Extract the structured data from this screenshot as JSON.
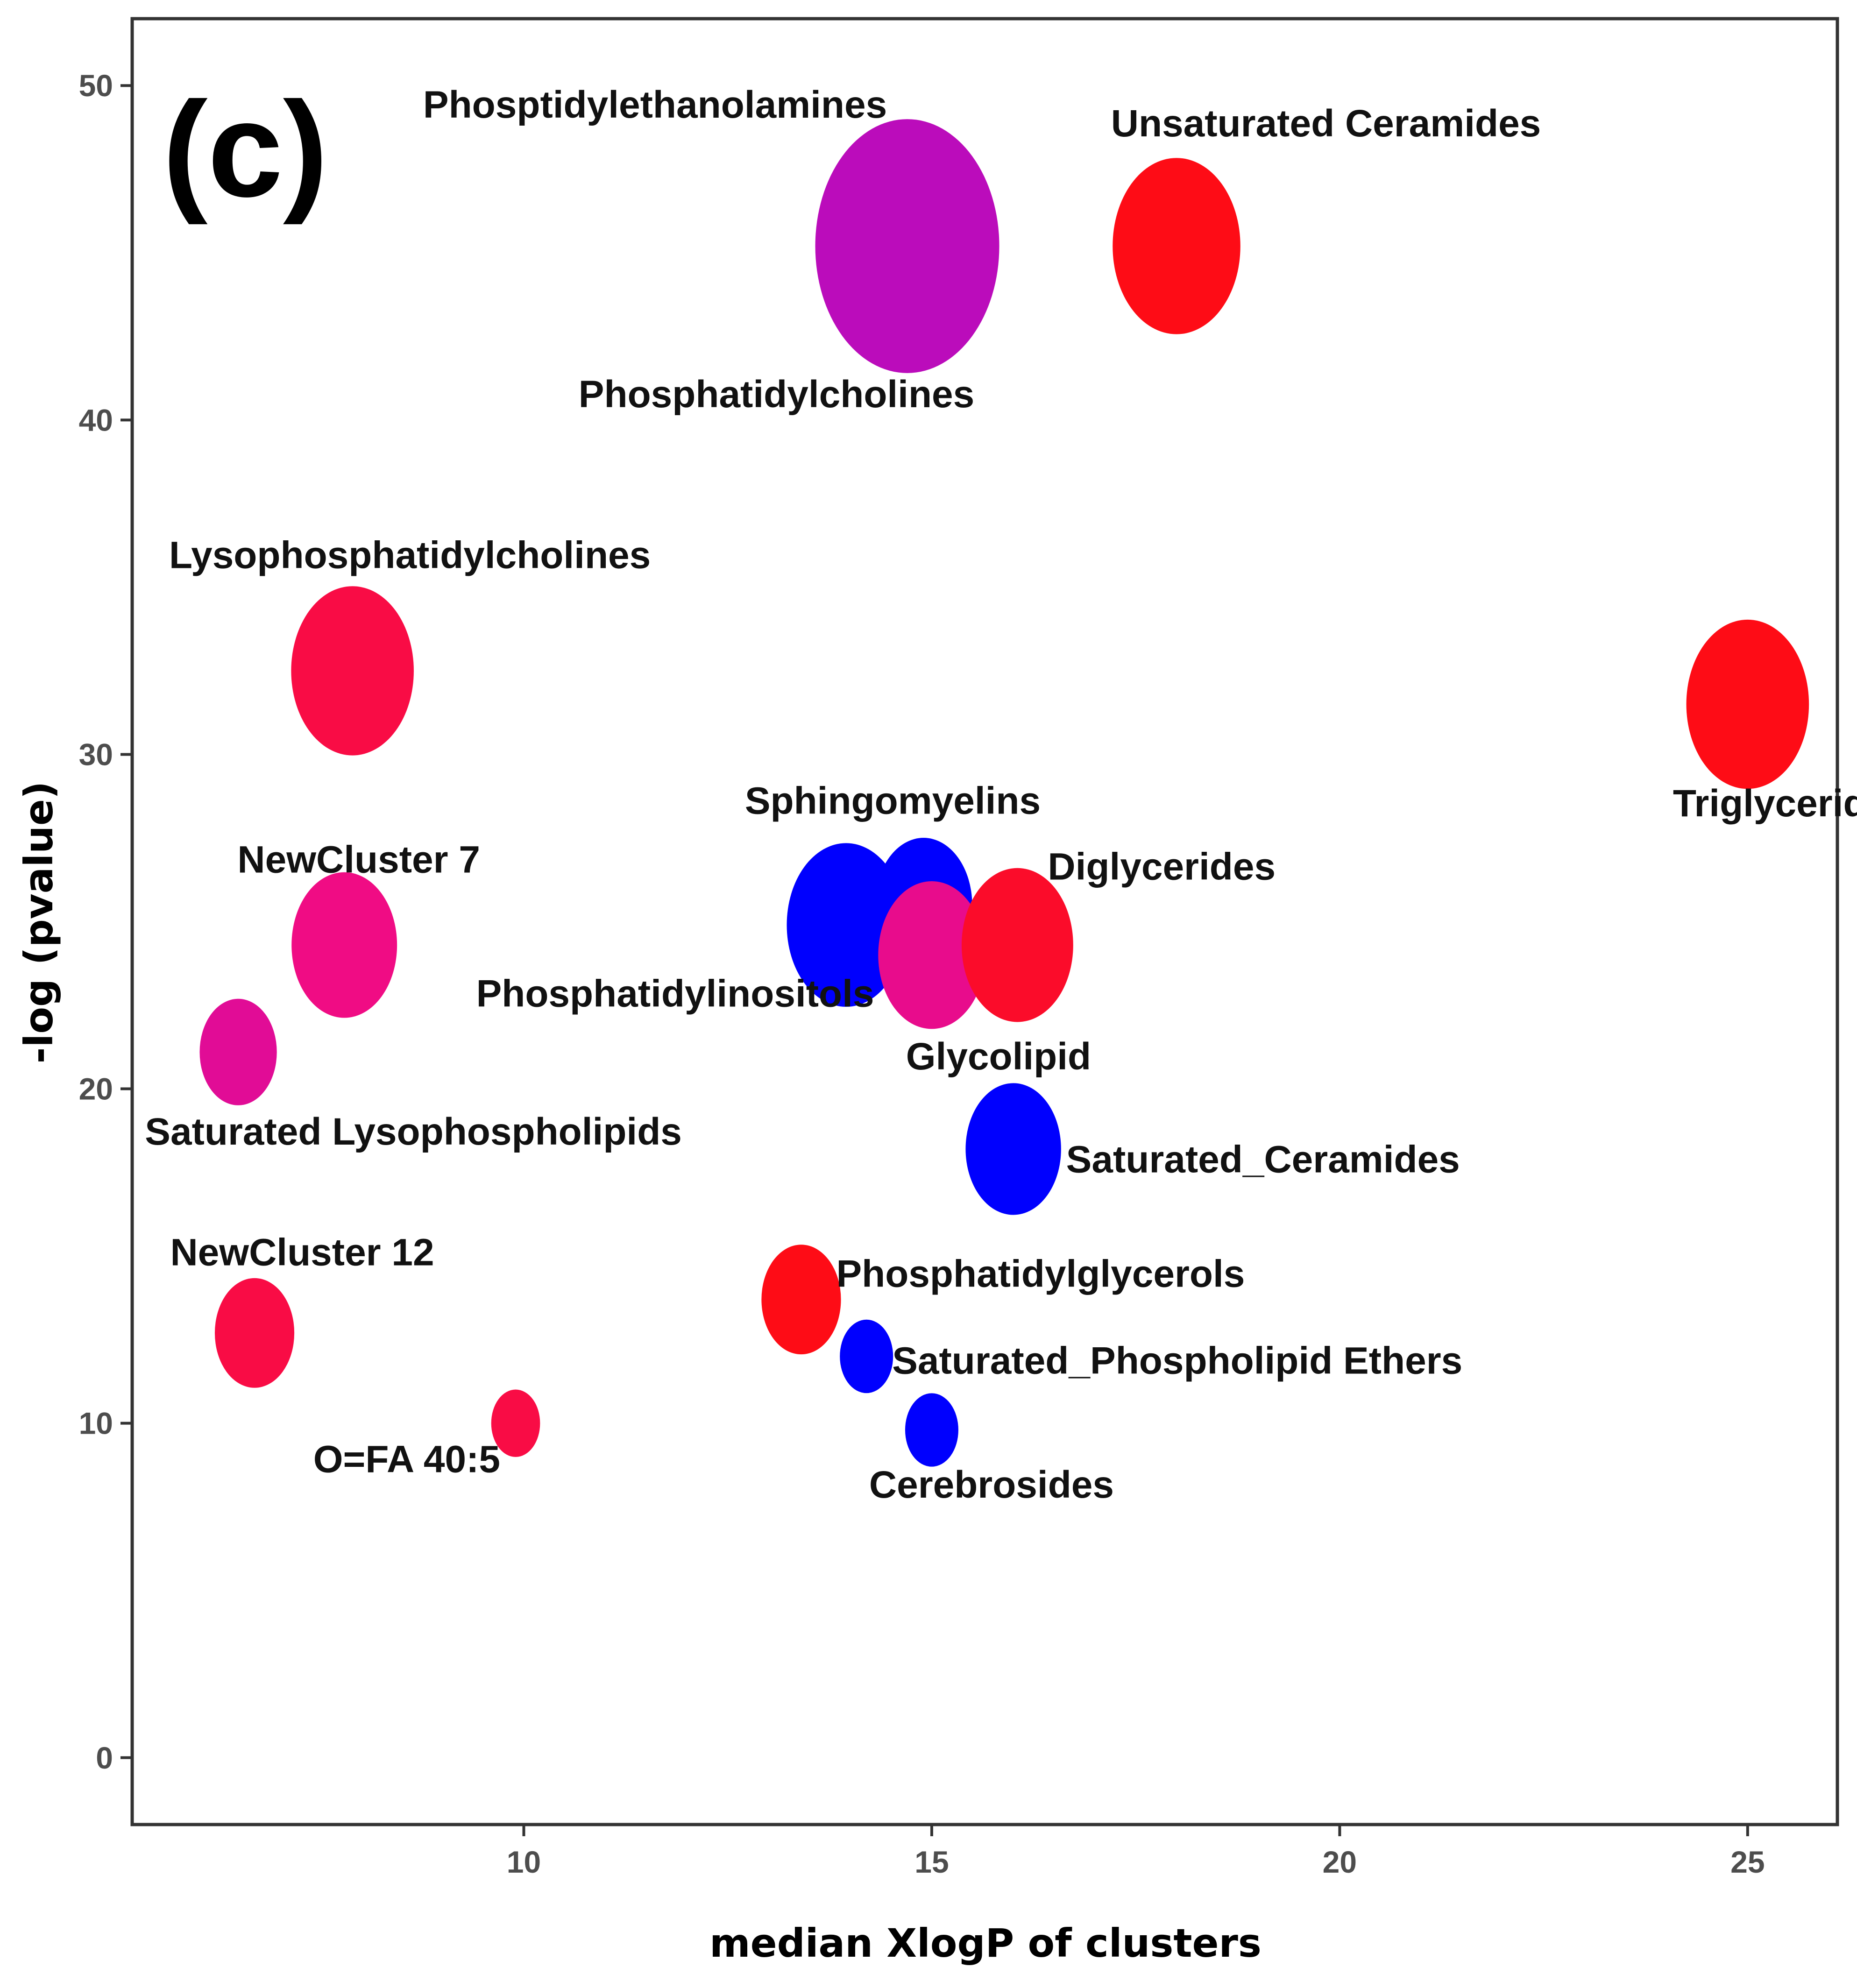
{
  "chart_data": {
    "type": "bubble-scatter",
    "panel_label": "(c)",
    "xlabel": "median XlogP of clusters",
    "ylabel": "-log (pvalue)",
    "xlim": [
      5.2,
      26.1
    ],
    "ylim": [
      -2,
      52
    ],
    "x_ticks": [
      10,
      15,
      20,
      25
    ],
    "y_ticks": [
      0,
      10,
      20,
      30,
      40,
      50
    ],
    "grid": false,
    "points": [
      {
        "name": "Phosptidylethanolamines",
        "label": "Phosptidylethanolamines",
        "x": 14.7,
        "y": 45.2,
        "size": 100,
        "color": "#bb0cbb"
      },
      {
        "name": "Phosphatidylcholines",
        "label": "Phosphatidylcholines",
        "x": 14.7,
        "y": 45.2,
        "size": 100,
        "color": "#bb0cbb"
      },
      {
        "name": "Unsaturated Ceramides",
        "label": "Unsaturated Ceramides",
        "x": 18.0,
        "y": 45.2,
        "size": 43,
        "color": "#fe0c16"
      },
      {
        "name": "Lysophosphatidylcholines",
        "label": "Lysophosphatidylcholines",
        "x": 7.9,
        "y": 32.5,
        "size": 39,
        "color": "#f90c45"
      },
      {
        "name": "Triglycerides",
        "label": "Triglycerides",
        "x": 25.0,
        "y": 31.5,
        "size": 39,
        "color": "#fe0c16"
      },
      {
        "name": "NewCluster 7",
        "label": "NewCluster 7",
        "x": 7.8,
        "y": 24.3,
        "size": 27,
        "color": "#f00c84"
      },
      {
        "name": "Sphingomyelins",
        "label": "Sphingomyelins",
        "x": 14.9,
        "y": 25.5,
        "size": 22,
        "color": "#0000fe"
      },
      {
        "name": "Phosphatidylinositols",
        "label": "Phosphatidylinositols",
        "x": 13.95,
        "y": 24.9,
        "size": 36,
        "color": "#0000fe"
      },
      {
        "name": "Glycolipid",
        "label": "Glycolipid",
        "x": 15.0,
        "y": 24.0,
        "size": 28,
        "color": "#e80c8c"
      },
      {
        "name": "Diglycerides",
        "label": "Diglycerides",
        "x": 16.05,
        "y": 24.3,
        "size": 31,
        "color": "#fb0c2a"
      },
      {
        "name": "Saturated Lysophospholipids",
        "label": "Saturated Lysophospholipids",
        "x": 6.5,
        "y": 21.1,
        "size": 12,
        "color": "#e10c96"
      },
      {
        "name": "Saturated_Ceramides",
        "label": "Saturated_Ceramides",
        "x": 16.0,
        "y": 18.2,
        "size": 21,
        "color": "#0000fe"
      },
      {
        "name": "Phosphatidylglycerols",
        "label": "Phosphatidylglycerols",
        "x": 13.4,
        "y": 13.7,
        "size": 13,
        "color": "#fe0c16"
      },
      {
        "name": "NewCluster 12",
        "label": "NewCluster 12",
        "x": 6.7,
        "y": 12.7,
        "size": 13,
        "color": "#f90c45"
      },
      {
        "name": "Saturated_Phospholipid Ethers",
        "label": "Saturated_Phospholipid Ethers",
        "x": 14.2,
        "y": 12.0,
        "size": 4,
        "color": "#0000fe"
      },
      {
        "name": "O=FA 40:5",
        "label": "O=FA 40:5",
        "x": 9.9,
        "y": 10.0,
        "size": 3,
        "color": "#f90c45"
      },
      {
        "name": "Cerebrosides",
        "label": "Cerebrosides",
        "x": 15.0,
        "y": 9.8,
        "size": 4,
        "color": "#0000fe"
      }
    ]
  }
}
